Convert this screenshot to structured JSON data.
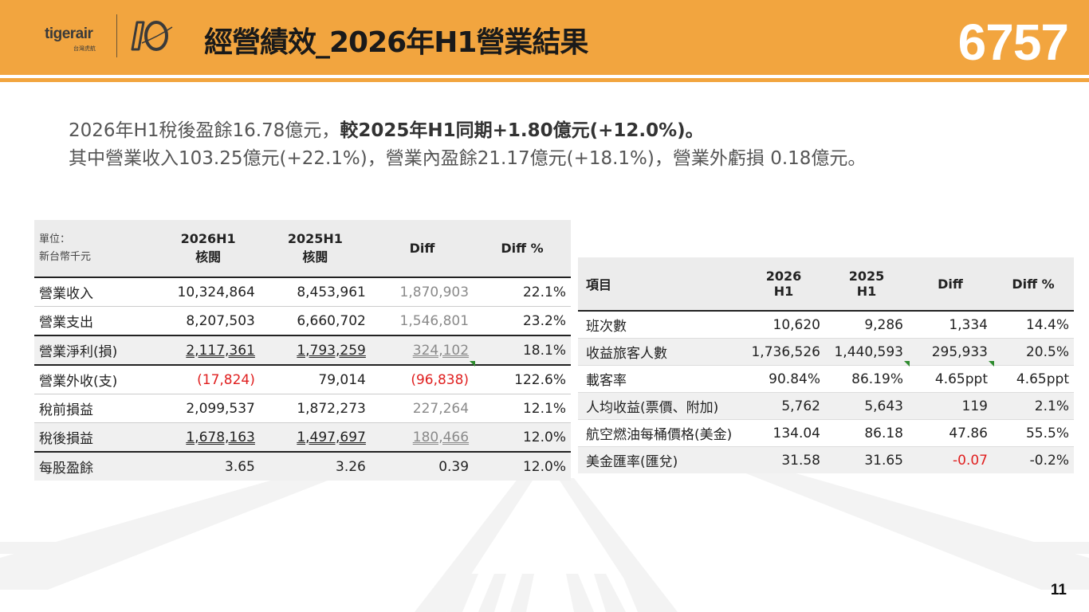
{
  "header": {
    "logo_text": "tigerair",
    "logo_sub": "台灣虎航",
    "title": "經營績效_2026年H1營業結果",
    "stock_code": "6757"
  },
  "summary": {
    "line1_a": "2026年H1稅後盈餘16.78億元，",
    "line1_b": "較2025年H1同期+1.80億元(+12.0%)。",
    "line2": "其中營業收入103.25億元(+22.1%)，營業內盈餘21.17億元(+18.1%)，營業外虧損 0.18億元。"
  },
  "table1": {
    "unit_line1": "單位：",
    "unit_line2": "新台幣千元",
    "headers": [
      {
        "line1": "2026H1",
        "line2": "核閱"
      },
      {
        "line1": "2025H1",
        "line2": "核閱"
      },
      {
        "line1": "Diff",
        "line2": ""
      },
      {
        "line1": "Diff %",
        "line2": ""
      }
    ],
    "rows": [
      {
        "label": "營業收入",
        "c1": "10,324,864",
        "c2": "8,453,961",
        "c3": "1,870,903",
        "c4": "22.1%"
      },
      {
        "label": "營業支出",
        "c1": "8,207,503",
        "c2": "6,660,702",
        "c3": "1,546,801",
        "c4": "23.2%"
      },
      {
        "label": "營業淨利(損)",
        "c1": "2,117,361",
        "c2": "1,793,259",
        "c3": "324,102",
        "c4": "18.1%"
      },
      {
        "label": "營業外收(支)",
        "c1": "(17,824)",
        "c2": "79,014",
        "c3": "(96,838)",
        "c4": "122.6%"
      },
      {
        "label": "稅前損益",
        "c1": "2,099,537",
        "c2": "1,872,273",
        "c3": "227,264",
        "c4": "12.1%"
      },
      {
        "label": "稅後損益",
        "c1": "1,678,163",
        "c2": "1,497,697",
        "c3": "180,466",
        "c4": "12.0%"
      },
      {
        "label": "每股盈餘",
        "c1": "3.65",
        "c2": "3.26",
        "c3": "0.39",
        "c4": "12.0%"
      }
    ]
  },
  "table2": {
    "headers": [
      {
        "line1": "項目",
        "line2": ""
      },
      {
        "line1": "2026",
        "line2": "H1"
      },
      {
        "line1": "2025",
        "line2": "H1"
      },
      {
        "line1": "Diff",
        "line2": ""
      },
      {
        "line1": "Diff %",
        "line2": ""
      }
    ],
    "rows": [
      {
        "label": "班次數",
        "c1": "10,620",
        "c2": "9,286",
        "c3": "1,334",
        "c4": "14.4%"
      },
      {
        "label": "收益旅客人數",
        "c1": "1,736,526",
        "c2": "1,440,593",
        "c3": "295,933",
        "c4": "20.5%"
      },
      {
        "label": "載客率",
        "c1": "90.84%",
        "c2": "86.19%",
        "c3": "4.65ppt",
        "c4": "4.65ppt"
      },
      {
        "label": "人均收益(票價、附加)",
        "c1": "5,762",
        "c2": "5,643",
        "c3": "119",
        "c4": "2.1%"
      },
      {
        "label": "航空燃油每桶價格(美金)",
        "c1": "134.04",
        "c2": "86.18",
        "c3": "47.86",
        "c4": "55.5%"
      },
      {
        "label": "美金匯率(匯兌)",
        "c1": "31.58",
        "c2": "31.65",
        "c3": "-0.07",
        "c4": "-0.2%"
      }
    ]
  },
  "page_number": "11",
  "colors": {
    "accent": "#f2a53f",
    "negative": "#e02020",
    "diff_gray": "#8a8a8a"
  }
}
